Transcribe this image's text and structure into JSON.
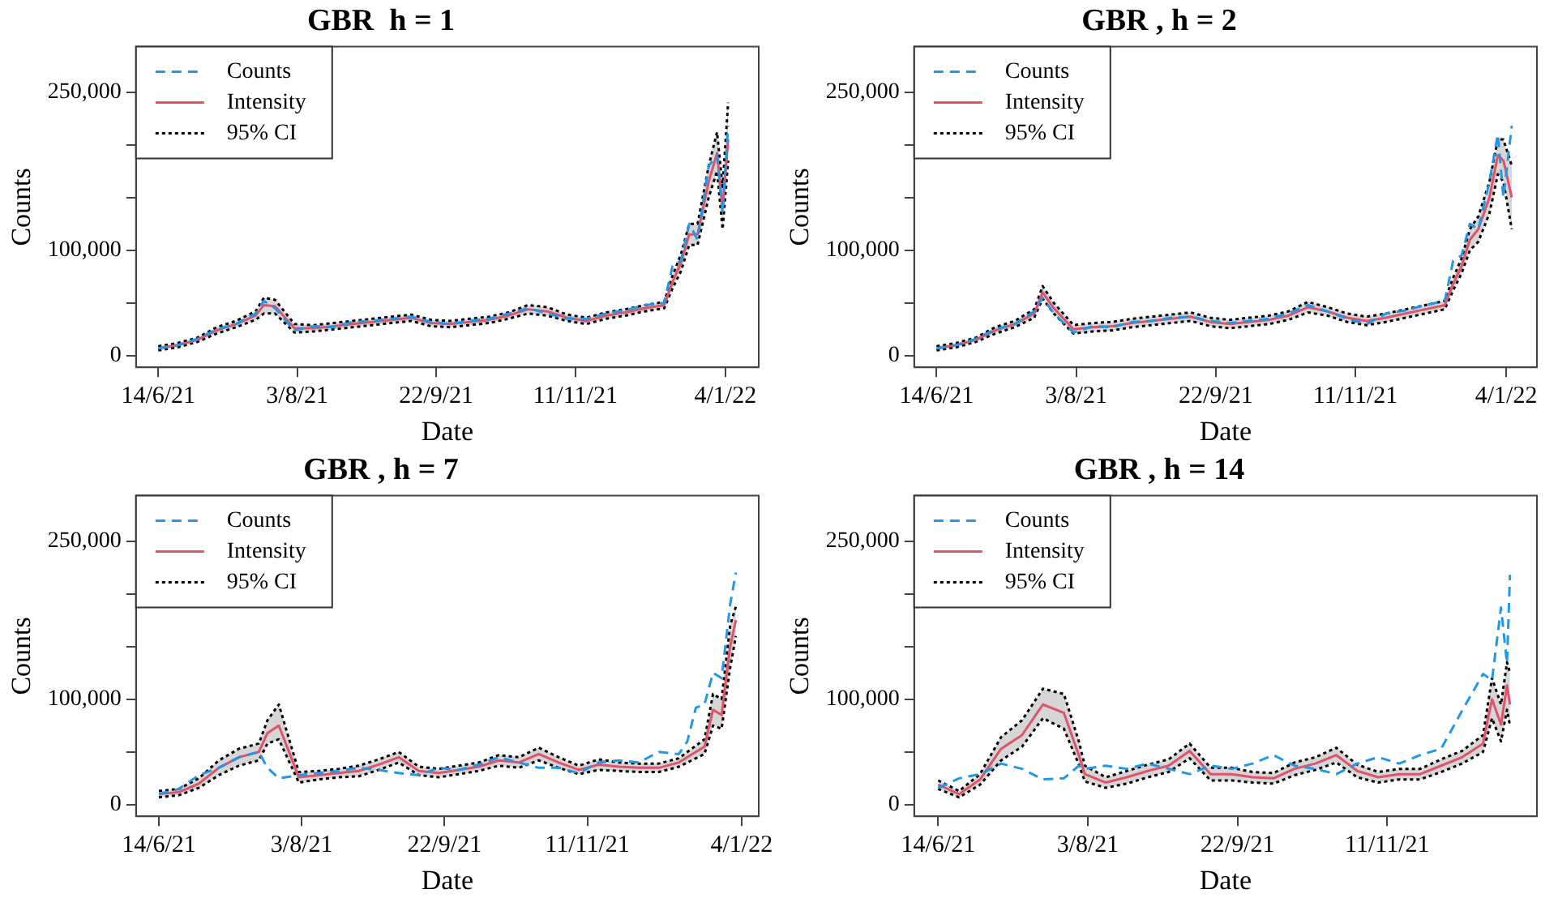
{
  "chart_data": [
    {
      "type": "line",
      "title": "GBR  h = 1",
      "xlabel": "Date",
      "ylabel": "Counts",
      "legend": "top left",
      "marker": "none",
      "xlim": [
        "2021-06-06",
        "2022-01-16"
      ],
      "xticks": [
        {
          "value": "2021-06-14",
          "label": "14/6/21"
        },
        {
          "value": "2021-08-03",
          "label": "3/8/21"
        },
        {
          "value": "2021-09-22",
          "label": "22/9/21"
        },
        {
          "value": "2021-11-11",
          "label": "11/11/21"
        },
        {
          "value": "2022-01-04",
          "label": "4/1/22"
        }
      ],
      "ylim": [
        -11000,
        293000
      ],
      "yticks": [
        {
          "value": 0,
          "label": "0"
        },
        {
          "value": 50000,
          "label": null
        },
        {
          "value": 100000,
          "label": "100,000"
        },
        {
          "value": 150000,
          "label": null
        },
        {
          "value": 200000,
          "label": null
        },
        {
          "value": 250000,
          "label": "250,000"
        }
      ],
      "x": [
        "2021-06-14",
        "2021-06-21",
        "2021-06-28",
        "2021-07-05",
        "2021-07-12",
        "2021-07-19",
        "2021-07-22",
        "2021-07-26",
        "2021-08-02",
        "2021-08-09",
        "2021-08-16",
        "2021-08-23",
        "2021-08-30",
        "2021-09-06",
        "2021-09-13",
        "2021-09-20",
        "2021-09-27",
        "2021-10-04",
        "2021-10-11",
        "2021-10-18",
        "2021-10-25",
        "2021-11-01",
        "2021-11-08",
        "2021-11-15",
        "2021-11-22",
        "2021-11-29",
        "2021-12-06",
        "2021-12-13",
        "2021-12-16",
        "2021-12-19",
        "2021-12-22",
        "2021-12-25",
        "2021-12-29",
        "2022-01-01",
        "2022-01-03",
        "2022-01-05"
      ],
      "series": [
        {
          "name": "Counts",
          "color": "#2297e6",
          "line_style": "dashed",
          "values": [
            7000,
            10000,
            16000,
            25000,
            30000,
            40000,
            52000,
            45000,
            24000,
            28000,
            27000,
            32000,
            33000,
            35000,
            37000,
            32000,
            30000,
            33000,
            35000,
            40000,
            45000,
            40000,
            35000,
            35000,
            40000,
            43000,
            48000,
            50000,
            85000,
            90000,
            125000,
            110000,
            180000,
            190000,
            135000,
            218000
          ]
        },
        {
          "name": "Intensity",
          "color": "#df536b",
          "line_style": "solid",
          "values": [
            7000,
            10000,
            15000,
            24000,
            30000,
            38000,
            48000,
            47000,
            26000,
            26000,
            28000,
            30000,
            32000,
            34000,
            36000,
            31000,
            30000,
            32000,
            34000,
            38000,
            44000,
            42000,
            36000,
            33000,
            38000,
            41000,
            45000,
            48000,
            70000,
            88000,
            115000,
            115000,
            165000,
            192000,
            140000,
            205000
          ],
          "lower": [
            5000,
            8000,
            13000,
            21000,
            27000,
            34000,
            40000,
            40000,
            22000,
            23000,
            25000,
            27000,
            29000,
            31000,
            33000,
            28000,
            27000,
            29000,
            31000,
            35000,
            40000,
            38000,
            33000,
            30000,
            35000,
            38000,
            42000,
            45000,
            64000,
            80000,
            105000,
            105000,
            150000,
            175000,
            120000,
            185000
          ],
          "upper": [
            9000,
            12000,
            17000,
            27000,
            33000,
            42000,
            55000,
            53000,
            30000,
            29000,
            31000,
            33000,
            35000,
            37000,
            39000,
            34000,
            33000,
            35000,
            37000,
            41000,
            48000,
            46000,
            39000,
            36000,
            41000,
            44000,
            48000,
            51000,
            76000,
            96000,
            125000,
            125000,
            180000,
            212000,
            160000,
            240000
          ]
        },
        {
          "color": "#000000",
          "line_style": "dotted",
          "values": [
            5000,
            8000,
            13000,
            21000,
            27000,
            34000,
            40000,
            40000,
            22000,
            23000,
            25000,
            27000,
            29000,
            31000,
            33000,
            28000,
            27000,
            29000,
            31000,
            35000,
            40000,
            38000,
            33000,
            30000,
            35000,
            38000,
            42000,
            45000,
            64000,
            80000,
            105000,
            105000,
            150000,
            175000,
            120000,
            185000
          ]
        },
        {
          "name": "95% CI",
          "color": "#000000",
          "line_style": "dotted",
          "values": [
            9000,
            12000,
            17000,
            27000,
            33000,
            42000,
            55000,
            53000,
            30000,
            29000,
            31000,
            33000,
            35000,
            37000,
            39000,
            34000,
            33000,
            35000,
            37000,
            41000,
            48000,
            46000,
            39000,
            36000,
            41000,
            44000,
            48000,
            51000,
            76000,
            96000,
            125000,
            125000,
            180000,
            212000,
            160000,
            240000
          ]
        }
      ]
    },
    {
      "type": "line",
      "title": "GBR , h = 2",
      "xlabel": "Date",
      "ylabel": "Counts",
      "legend": "top left",
      "marker": "none",
      "xlim": [
        "2021-06-06",
        "2022-01-15"
      ],
      "xticks": [
        {
          "value": "2021-06-14",
          "label": "14/6/21"
        },
        {
          "value": "2021-08-03",
          "label": "3/8/21"
        },
        {
          "value": "2021-09-22",
          "label": "22/9/21"
        },
        {
          "value": "2021-11-11",
          "label": "11/11/21"
        },
        {
          "value": "2022-01-04",
          "label": "4/1/22"
        }
      ],
      "ylim": [
        -11000,
        293000
      ],
      "yticks": [
        {
          "value": 0,
          "label": "0"
        },
        {
          "value": 50000,
          "label": null
        },
        {
          "value": 100000,
          "label": "100,000"
        },
        {
          "value": 150000,
          "label": null
        },
        {
          "value": 200000,
          "label": null
        },
        {
          "value": 250000,
          "label": "250,000"
        }
      ],
      "x": [
        "2021-06-14",
        "2021-06-21",
        "2021-06-28",
        "2021-07-05",
        "2021-07-12",
        "2021-07-19",
        "2021-07-22",
        "2021-07-26",
        "2021-08-02",
        "2021-08-09",
        "2021-08-16",
        "2021-08-23",
        "2021-08-30",
        "2021-09-06",
        "2021-09-13",
        "2021-09-20",
        "2021-09-27",
        "2021-10-04",
        "2021-10-11",
        "2021-10-18",
        "2021-10-25",
        "2021-11-01",
        "2021-11-08",
        "2021-11-15",
        "2021-11-22",
        "2021-11-29",
        "2021-12-06",
        "2021-12-13",
        "2021-12-16",
        "2021-12-19",
        "2021-12-22",
        "2021-12-25",
        "2021-12-29",
        "2022-01-01",
        "2022-01-03",
        "2022-01-06"
      ],
      "series": [
        {
          "name": "Counts",
          "color": "#2297e6",
          "line_style": "dashed",
          "values": [
            7000,
            10000,
            16000,
            25000,
            30000,
            42000,
            55000,
            40000,
            22000,
            28000,
            27000,
            32000,
            33000,
            36000,
            37000,
            33000,
            31000,
            33000,
            35000,
            40000,
            48000,
            42000,
            35000,
            30000,
            40000,
            43000,
            48000,
            52000,
            90000,
            95000,
            125000,
            120000,
            165000,
            210000,
            150000,
            218000
          ]
        },
        {
          "name": "Intensity",
          "color": "#df536b",
          "line_style": "solid",
          "values": [
            7000,
            10000,
            15000,
            24000,
            30000,
            40000,
            60000,
            45000,
            25000,
            27000,
            28000,
            31000,
            33000,
            35000,
            37000,
            32000,
            30000,
            32000,
            34000,
            38000,
            46000,
            42000,
            36000,
            33000,
            36000,
            40000,
            44000,
            48000,
            68000,
            85000,
            110000,
            120000,
            150000,
            190000,
            185000,
            150000
          ],
          "lower": [
            5000,
            8000,
            13000,
            21000,
            27000,
            36000,
            54000,
            40000,
            21000,
            23000,
            24000,
            27000,
            29000,
            31000,
            33000,
            28000,
            26000,
            28000,
            30000,
            34000,
            41000,
            38000,
            32000,
            29000,
            32000,
            36000,
            40000,
            44000,
            62000,
            78000,
            100000,
            108000,
            135000,
            172000,
            165000,
            120000
          ],
          "upper": [
            9000,
            12000,
            17000,
            27000,
            33000,
            44000,
            66000,
            50000,
            29000,
            31000,
            32000,
            35000,
            37000,
            39000,
            41000,
            36000,
            34000,
            36000,
            38000,
            42000,
            51000,
            46000,
            40000,
            37000,
            40000,
            44000,
            48000,
            52000,
            74000,
            92000,
            120000,
            132000,
            165000,
            205000,
            205000,
            180000
          ]
        },
        {
          "color": "#000000",
          "line_style": "dotted",
          "values": [
            5000,
            8000,
            13000,
            21000,
            27000,
            36000,
            54000,
            40000,
            21000,
            23000,
            24000,
            27000,
            29000,
            31000,
            33000,
            28000,
            26000,
            28000,
            30000,
            34000,
            41000,
            38000,
            32000,
            29000,
            32000,
            36000,
            40000,
            44000,
            62000,
            78000,
            100000,
            108000,
            135000,
            172000,
            165000,
            120000
          ]
        },
        {
          "name": "95% CI",
          "color": "#000000",
          "line_style": "dotted",
          "values": [
            9000,
            12000,
            17000,
            27000,
            33000,
            44000,
            66000,
            50000,
            29000,
            31000,
            32000,
            35000,
            37000,
            39000,
            41000,
            36000,
            34000,
            36000,
            38000,
            42000,
            51000,
            46000,
            40000,
            37000,
            40000,
            44000,
            48000,
            52000,
            74000,
            92000,
            120000,
            132000,
            165000,
            205000,
            205000,
            180000
          ]
        }
      ]
    },
    {
      "type": "line",
      "title": "GBR , h = 7",
      "xlabel": "Date",
      "ylabel": "Counts",
      "legend": "top left",
      "marker": "none",
      "xlim": [
        "2021-06-06",
        "2022-01-10"
      ],
      "xticks": [
        {
          "value": "2021-06-14",
          "label": "14/6/21"
        },
        {
          "value": "2021-08-03",
          "label": "3/8/21"
        },
        {
          "value": "2021-09-22",
          "label": "22/9/21"
        },
        {
          "value": "2021-11-11",
          "label": "11/11/21"
        },
        {
          "value": "2022-01-04",
          "label": "4/1/22"
        }
      ],
      "ylim": [
        -11000,
        293000
      ],
      "yticks": [
        {
          "value": 0,
          "label": "0"
        },
        {
          "value": 50000,
          "label": null
        },
        {
          "value": 100000,
          "label": "100,000"
        },
        {
          "value": 150000,
          "label": null
        },
        {
          "value": 200000,
          "label": null
        },
        {
          "value": 250000,
          "label": "250,000"
        }
      ],
      "x": [
        "2021-06-14",
        "2021-06-21",
        "2021-06-28",
        "2021-07-05",
        "2021-07-12",
        "2021-07-19",
        "2021-07-22",
        "2021-07-26",
        "2021-08-02",
        "2021-08-09",
        "2021-08-16",
        "2021-08-23",
        "2021-08-30",
        "2021-09-06",
        "2021-09-13",
        "2021-09-20",
        "2021-09-27",
        "2021-10-04",
        "2021-10-11",
        "2021-10-18",
        "2021-10-25",
        "2021-11-01",
        "2021-11-08",
        "2021-11-15",
        "2021-11-22",
        "2021-11-29",
        "2021-12-06",
        "2021-12-13",
        "2021-12-16",
        "2021-12-19",
        "2021-12-22",
        "2021-12-25",
        "2021-12-28",
        "2021-12-31",
        "2022-01-02"
      ],
      "series": [
        {
          "name": "Counts",
          "color": "#2297e6",
          "line_style": "dashed",
          "values": [
            10000,
            15000,
            28000,
            35000,
            45000,
            50000,
            35000,
            25000,
            28000,
            30000,
            32000,
            35000,
            33000,
            30000,
            28000,
            35000,
            33000,
            38000,
            45000,
            40000,
            35000,
            35000,
            30000,
            40000,
            42000,
            40000,
            50000,
            48000,
            60000,
            92000,
            95000,
            125000,
            120000,
            190000,
            220000
          ]
        },
        {
          "name": "Intensity",
          "color": "#df536b",
          "line_style": "solid",
          "values": [
            10000,
            12000,
            20000,
            35000,
            45000,
            50000,
            68000,
            75000,
            26000,
            28000,
            30000,
            32000,
            38000,
            45000,
            32000,
            30000,
            33000,
            36000,
            42000,
            40000,
            48000,
            40000,
            33000,
            38000,
            36000,
            35000,
            35000,
            40000,
            45000,
            50000,
            55000,
            90000,
            85000,
            150000,
            175000
          ],
          "lower": [
            7000,
            9000,
            16000,
            28000,
            37000,
            42000,
            58000,
            62000,
            21000,
            24000,
            26000,
            27000,
            33000,
            40000,
            28000,
            26000,
            29000,
            32000,
            37000,
            35000,
            42000,
            35000,
            29000,
            33000,
            32000,
            31000,
            31000,
            36000,
            40000,
            44000,
            48000,
            75000,
            72000,
            130000,
            160000
          ],
          "upper": [
            13000,
            15000,
            25000,
            42000,
            53000,
            58000,
            80000,
            95000,
            31000,
            32000,
            34000,
            37000,
            43000,
            50000,
            36000,
            34000,
            37000,
            40000,
            47000,
            45000,
            54000,
            45000,
            37000,
            43000,
            40000,
            39000,
            39000,
            44000,
            50000,
            56000,
            62000,
            105000,
            100000,
            170000,
            188000
          ]
        },
        {
          "color": "#000000",
          "line_style": "dotted",
          "values": [
            7000,
            9000,
            16000,
            28000,
            37000,
            42000,
            58000,
            62000,
            21000,
            24000,
            26000,
            27000,
            33000,
            40000,
            28000,
            26000,
            29000,
            32000,
            37000,
            35000,
            42000,
            35000,
            29000,
            33000,
            32000,
            31000,
            31000,
            36000,
            40000,
            44000,
            48000,
            75000,
            72000,
            130000,
            160000
          ]
        },
        {
          "name": "95% CI",
          "color": "#000000",
          "line_style": "dotted",
          "values": [
            13000,
            15000,
            25000,
            42000,
            53000,
            58000,
            80000,
            95000,
            31000,
            32000,
            34000,
            37000,
            43000,
            50000,
            36000,
            34000,
            37000,
            40000,
            47000,
            45000,
            54000,
            45000,
            37000,
            43000,
            40000,
            39000,
            39000,
            44000,
            50000,
            56000,
            62000,
            105000,
            100000,
            170000,
            188000
          ]
        }
      ]
    },
    {
      "type": "line",
      "title": "GBR , h = 14",
      "xlabel": "Date",
      "ylabel": "Counts",
      "legend": "top left",
      "marker": "none",
      "xlim": [
        "2021-06-06",
        "2021-12-31"
      ],
      "xticks": [
        {
          "value": "2021-06-14",
          "label": "14/6/21"
        },
        {
          "value": "2021-08-03",
          "label": "3/8/21"
        },
        {
          "value": "2021-09-22",
          "label": "22/9/21"
        },
        {
          "value": "2021-11-11",
          "label": "11/11/21"
        }
      ],
      "ylim": [
        -11000,
        293000
      ],
      "yticks": [
        {
          "value": 0,
          "label": "0"
        },
        {
          "value": 50000,
          "label": null
        },
        {
          "value": 100000,
          "label": "100,000"
        },
        {
          "value": 150000,
          "label": null
        },
        {
          "value": 200000,
          "label": null
        },
        {
          "value": 250000,
          "label": "250,000"
        }
      ],
      "x": [
        "2021-06-14",
        "2021-06-21",
        "2021-06-28",
        "2021-07-05",
        "2021-07-12",
        "2021-07-19",
        "2021-07-26",
        "2021-07-31",
        "2021-08-02",
        "2021-08-09",
        "2021-08-16",
        "2021-08-23",
        "2021-08-30",
        "2021-09-06",
        "2021-09-13",
        "2021-09-20",
        "2021-09-27",
        "2021-10-04",
        "2021-10-11",
        "2021-10-18",
        "2021-10-25",
        "2021-11-01",
        "2021-11-08",
        "2021-11-15",
        "2021-11-22",
        "2021-11-29",
        "2021-12-06",
        "2021-12-13",
        "2021-12-16",
        "2021-12-19",
        "2021-12-21",
        "2021-12-22"
      ],
      "series": [
        {
          "name": "Counts",
          "color": "#2297e6",
          "line_style": "dashed",
          "values": [
            16000,
            25000,
            29000,
            39000,
            34000,
            24000,
            25000,
            37000,
            34000,
            37000,
            34000,
            39000,
            34000,
            29000,
            37000,
            34000,
            39000,
            47000,
            37000,
            34000,
            29000,
            39000,
            45000,
            39000,
            47000,
            53000,
            89000,
            124000,
            118000,
            187000,
            134000,
            218000
          ]
        },
        {
          "name": "Intensity",
          "color": "#df536b",
          "line_style": "solid",
          "values": [
            19000,
            10000,
            24000,
            53000,
            66000,
            95000,
            87000,
            47000,
            29000,
            21000,
            26000,
            32000,
            37000,
            51000,
            29000,
            29000,
            26000,
            25000,
            34000,
            39000,
            47000,
            32000,
            26000,
            29000,
            29000,
            37000,
            45000,
            58000,
            100000,
            76000,
            113000,
            95000
          ],
          "lower": [
            15000,
            7000,
            19000,
            42000,
            55000,
            82000,
            72000,
            38000,
            22000,
            16000,
            20000,
            26000,
            31000,
            44000,
            23000,
            23000,
            21000,
            20000,
            28000,
            33000,
            40000,
            26000,
            21000,
            24000,
            24000,
            31000,
            39000,
            50000,
            82000,
            60000,
            90000,
            75000
          ],
          "upper": [
            23000,
            13000,
            29000,
            64000,
            80000,
            110000,
            105000,
            60000,
            37000,
            26000,
            32000,
            38000,
            43000,
            58000,
            35000,
            35000,
            31000,
            30000,
            40000,
            45000,
            54000,
            38000,
            31000,
            34000,
            34000,
            43000,
            51000,
            66000,
            120000,
            95000,
            135000,
            125000
          ]
        },
        {
          "color": "#000000",
          "line_style": "dotted",
          "values": [
            15000,
            7000,
            19000,
            42000,
            55000,
            82000,
            72000,
            38000,
            22000,
            16000,
            20000,
            26000,
            31000,
            44000,
            23000,
            23000,
            21000,
            20000,
            28000,
            33000,
            40000,
            26000,
            21000,
            24000,
            24000,
            31000,
            39000,
            50000,
            82000,
            60000,
            90000,
            75000
          ]
        },
        {
          "name": "95% CI",
          "color": "#000000",
          "line_style": "dotted",
          "values": [
            23000,
            13000,
            29000,
            64000,
            80000,
            110000,
            105000,
            60000,
            37000,
            26000,
            32000,
            38000,
            43000,
            58000,
            35000,
            35000,
            31000,
            30000,
            40000,
            45000,
            54000,
            38000,
            31000,
            34000,
            34000,
            43000,
            51000,
            66000,
            120000,
            95000,
            135000,
            125000
          ]
        }
      ]
    }
  ]
}
